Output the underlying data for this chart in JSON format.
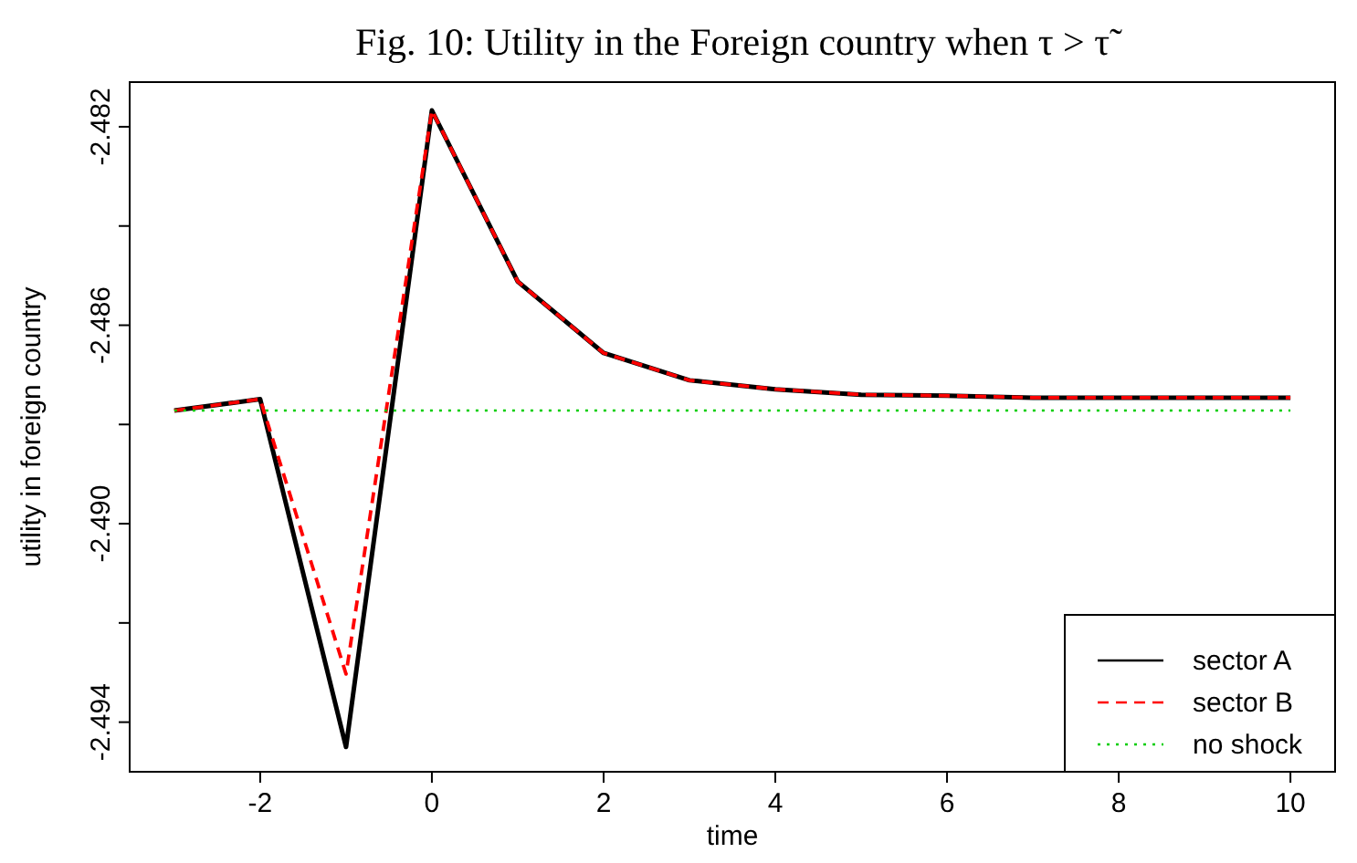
{
  "chart_data": {
    "type": "line",
    "title": "Fig. 10: Utility in the Foreign country when τ > τ̃",
    "xlabel": "time",
    "ylabel": "utility in foreign country",
    "x": [
      -3,
      -2,
      -1,
      0,
      1,
      2,
      3,
      4,
      5,
      6,
      7,
      8,
      9,
      10
    ],
    "series": [
      {
        "name": "sector A",
        "color": "#000000",
        "line_style": "solid",
        "values": [
          -2.48772,
          -2.48749,
          -2.4945,
          -2.48167,
          -2.48512,
          -2.48656,
          -2.48711,
          -2.48729,
          -2.4874,
          -2.48742,
          -2.48746,
          -2.48746,
          -2.48746,
          -2.48746
        ]
      },
      {
        "name": "sector B",
        "color": "#ff0000",
        "line_style": "dashed",
        "values": [
          -2.48772,
          -2.48749,
          -2.49303,
          -2.48167,
          -2.48512,
          -2.48656,
          -2.48711,
          -2.48729,
          -2.4874,
          -2.48742,
          -2.48746,
          -2.48746,
          -2.48746,
          -2.48746
        ]
      },
      {
        "name": "no shock",
        "color": "#00cd00",
        "line_style": "dotted",
        "values": [
          -2.48772,
          -2.48772,
          -2.48772,
          -2.48772,
          -2.48772,
          -2.48772,
          -2.48772,
          -2.48772,
          -2.48772,
          -2.48772,
          -2.48772,
          -2.48772,
          -2.48772,
          -2.48772
        ]
      }
    ],
    "xlim": [
      -3.52,
      10.52
    ],
    "ylim": [
      -2.495,
      -2.4811
    ],
    "xticks": [
      -2,
      0,
      2,
      4,
      6,
      8,
      10
    ],
    "yticks": [
      {
        "value": -2.494,
        "label": "-2.494"
      },
      {
        "value": -2.492,
        "label": null
      },
      {
        "value": -2.49,
        "label": "-2.490"
      },
      {
        "value": -2.488,
        "label": null
      },
      {
        "value": -2.486,
        "label": "-2.486"
      },
      {
        "value": -2.484,
        "label": null
      },
      {
        "value": -2.482,
        "label": "-2.482"
      }
    ],
    "grid": false,
    "legend": "bottom right",
    "marker": "none"
  }
}
